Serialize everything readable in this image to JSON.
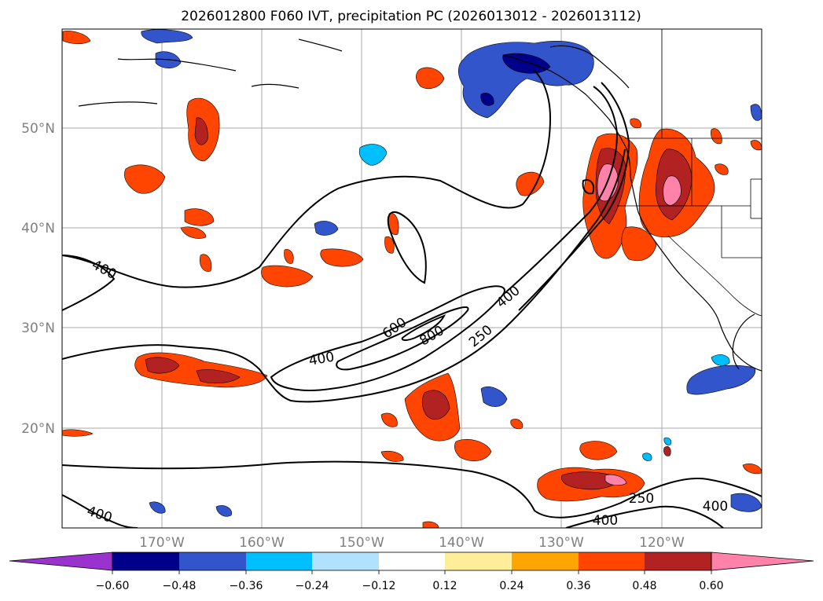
{
  "map": {
    "title": "2026012800 F060 IVT, precipitation PC (2026013012 - 2026013112)",
    "lat_labels": [
      "50°N",
      "40°N",
      "30°N",
      "20°N"
    ],
    "lon_labels": [
      "170°W",
      "160°W",
      "150°W",
      "140°W",
      "130°W",
      "120°W"
    ],
    "extent": {
      "lon_west": -180,
      "lon_east": -110,
      "lat_south": 10,
      "lat_north": 60
    },
    "contour_labels": [
      "400",
      "600",
      "800",
      "400",
      "250",
      "400",
      "400",
      "250",
      "400",
      "400"
    ],
    "colors": {
      "neg_060": "#9a32cd",
      "neg_048": "#00008b",
      "neg_036": "#3355cc",
      "neg_024": "#00bfff",
      "neg_012": "#b0e2ff",
      "pos_012": "#ffee99",
      "pos_024": "#ffa500",
      "pos_036": "#ff4500",
      "pos_048": "#b22222",
      "pos_060": "#ff82ab"
    }
  },
  "colorbar": {
    "labels": [
      "−0.60",
      "−0.48",
      "−0.36",
      "−0.24",
      "−0.12",
      "0.12",
      "0.24",
      "0.36",
      "0.48",
      "0.60"
    ]
  }
}
